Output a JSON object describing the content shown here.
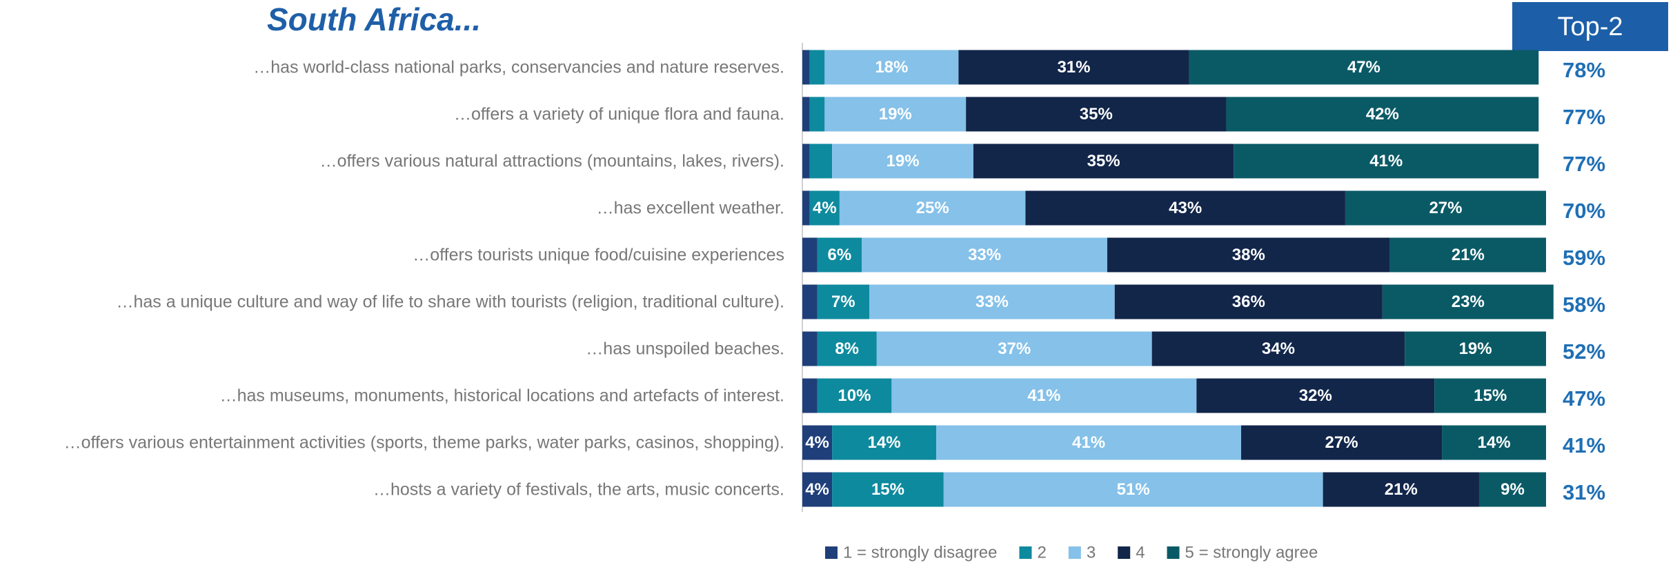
{
  "chart_data": {
    "type": "stacked-bar-horizontal",
    "title": "South Africa...",
    "categories": [
      "…has world-class national parks, conservancies and nature reserves.",
      "…offers a variety of unique flora and fauna.",
      "…offers various natural attractions (mountains, lakes, rivers).",
      "…has excellent weather.",
      "…offers tourists unique food/cuisine experiences",
      "…has a unique culture and way of life to share with tourists (religion, traditional culture).",
      "…has unspoiled beaches.",
      "…has museums, monuments, historical locations and artefacts of interest.",
      "…offers various entertainment activities (sports, theme parks, water parks, casinos, shopping).",
      "…hosts a variety of festivals, the arts, music concerts."
    ],
    "xlim": [
      0,
      100
    ],
    "series": [
      {
        "name": "1 = strongly disagree",
        "color": "#1f3f7a",
        "values": [
          1,
          1,
          1,
          1,
          2,
          2,
          2,
          2,
          4,
          4
        ],
        "value_labels": [
          null,
          null,
          null,
          null,
          null,
          null,
          null,
          null,
          "4%",
          "4%"
        ]
      },
      {
        "name": "2",
        "color": "#0e8a9e",
        "values": [
          2,
          2,
          3,
          4,
          6,
          7,
          8,
          10,
          14,
          15
        ],
        "value_labels": [
          null,
          null,
          null,
          "4%",
          "6%",
          "7%",
          "8%",
          "10%",
          "14%",
          "15%"
        ]
      },
      {
        "name": "3",
        "color": "#85c1e9",
        "values": [
          18,
          19,
          19,
          25,
          33,
          33,
          37,
          41,
          41,
          51
        ],
        "value_labels": [
          "18%",
          "19%",
          "19%",
          "25%",
          "33%",
          "33%",
          "37%",
          "41%",
          "41%",
          "51%"
        ]
      },
      {
        "name": "4",
        "color": "#12264a",
        "values": [
          31,
          35,
          35,
          43,
          38,
          36,
          34,
          32,
          27,
          21
        ],
        "value_labels": [
          "31%",
          "35%",
          "35%",
          "43%",
          "38%",
          "36%",
          "34%",
          "32%",
          "27%",
          "21%"
        ]
      },
      {
        "name": "5 = strongly agree",
        "color": "#0a5a66",
        "values": [
          47,
          42,
          41,
          27,
          21,
          23,
          19,
          15,
          14,
          9
        ],
        "value_labels": [
          "47%",
          "42%",
          "41%",
          "27%",
          "21%",
          "23%",
          "19%",
          "15%",
          "14%",
          "9%"
        ]
      }
    ],
    "top2": {
      "title": "Top-2",
      "color": "#1c5fa8",
      "values": [
        78,
        77,
        77,
        70,
        59,
        58,
        52,
        47,
        41,
        31
      ],
      "value_labels": [
        "78%",
        "77%",
        "77%",
        "70%",
        "59%",
        "58%",
        "52%",
        "47%",
        "41%",
        "31%"
      ]
    }
  }
}
